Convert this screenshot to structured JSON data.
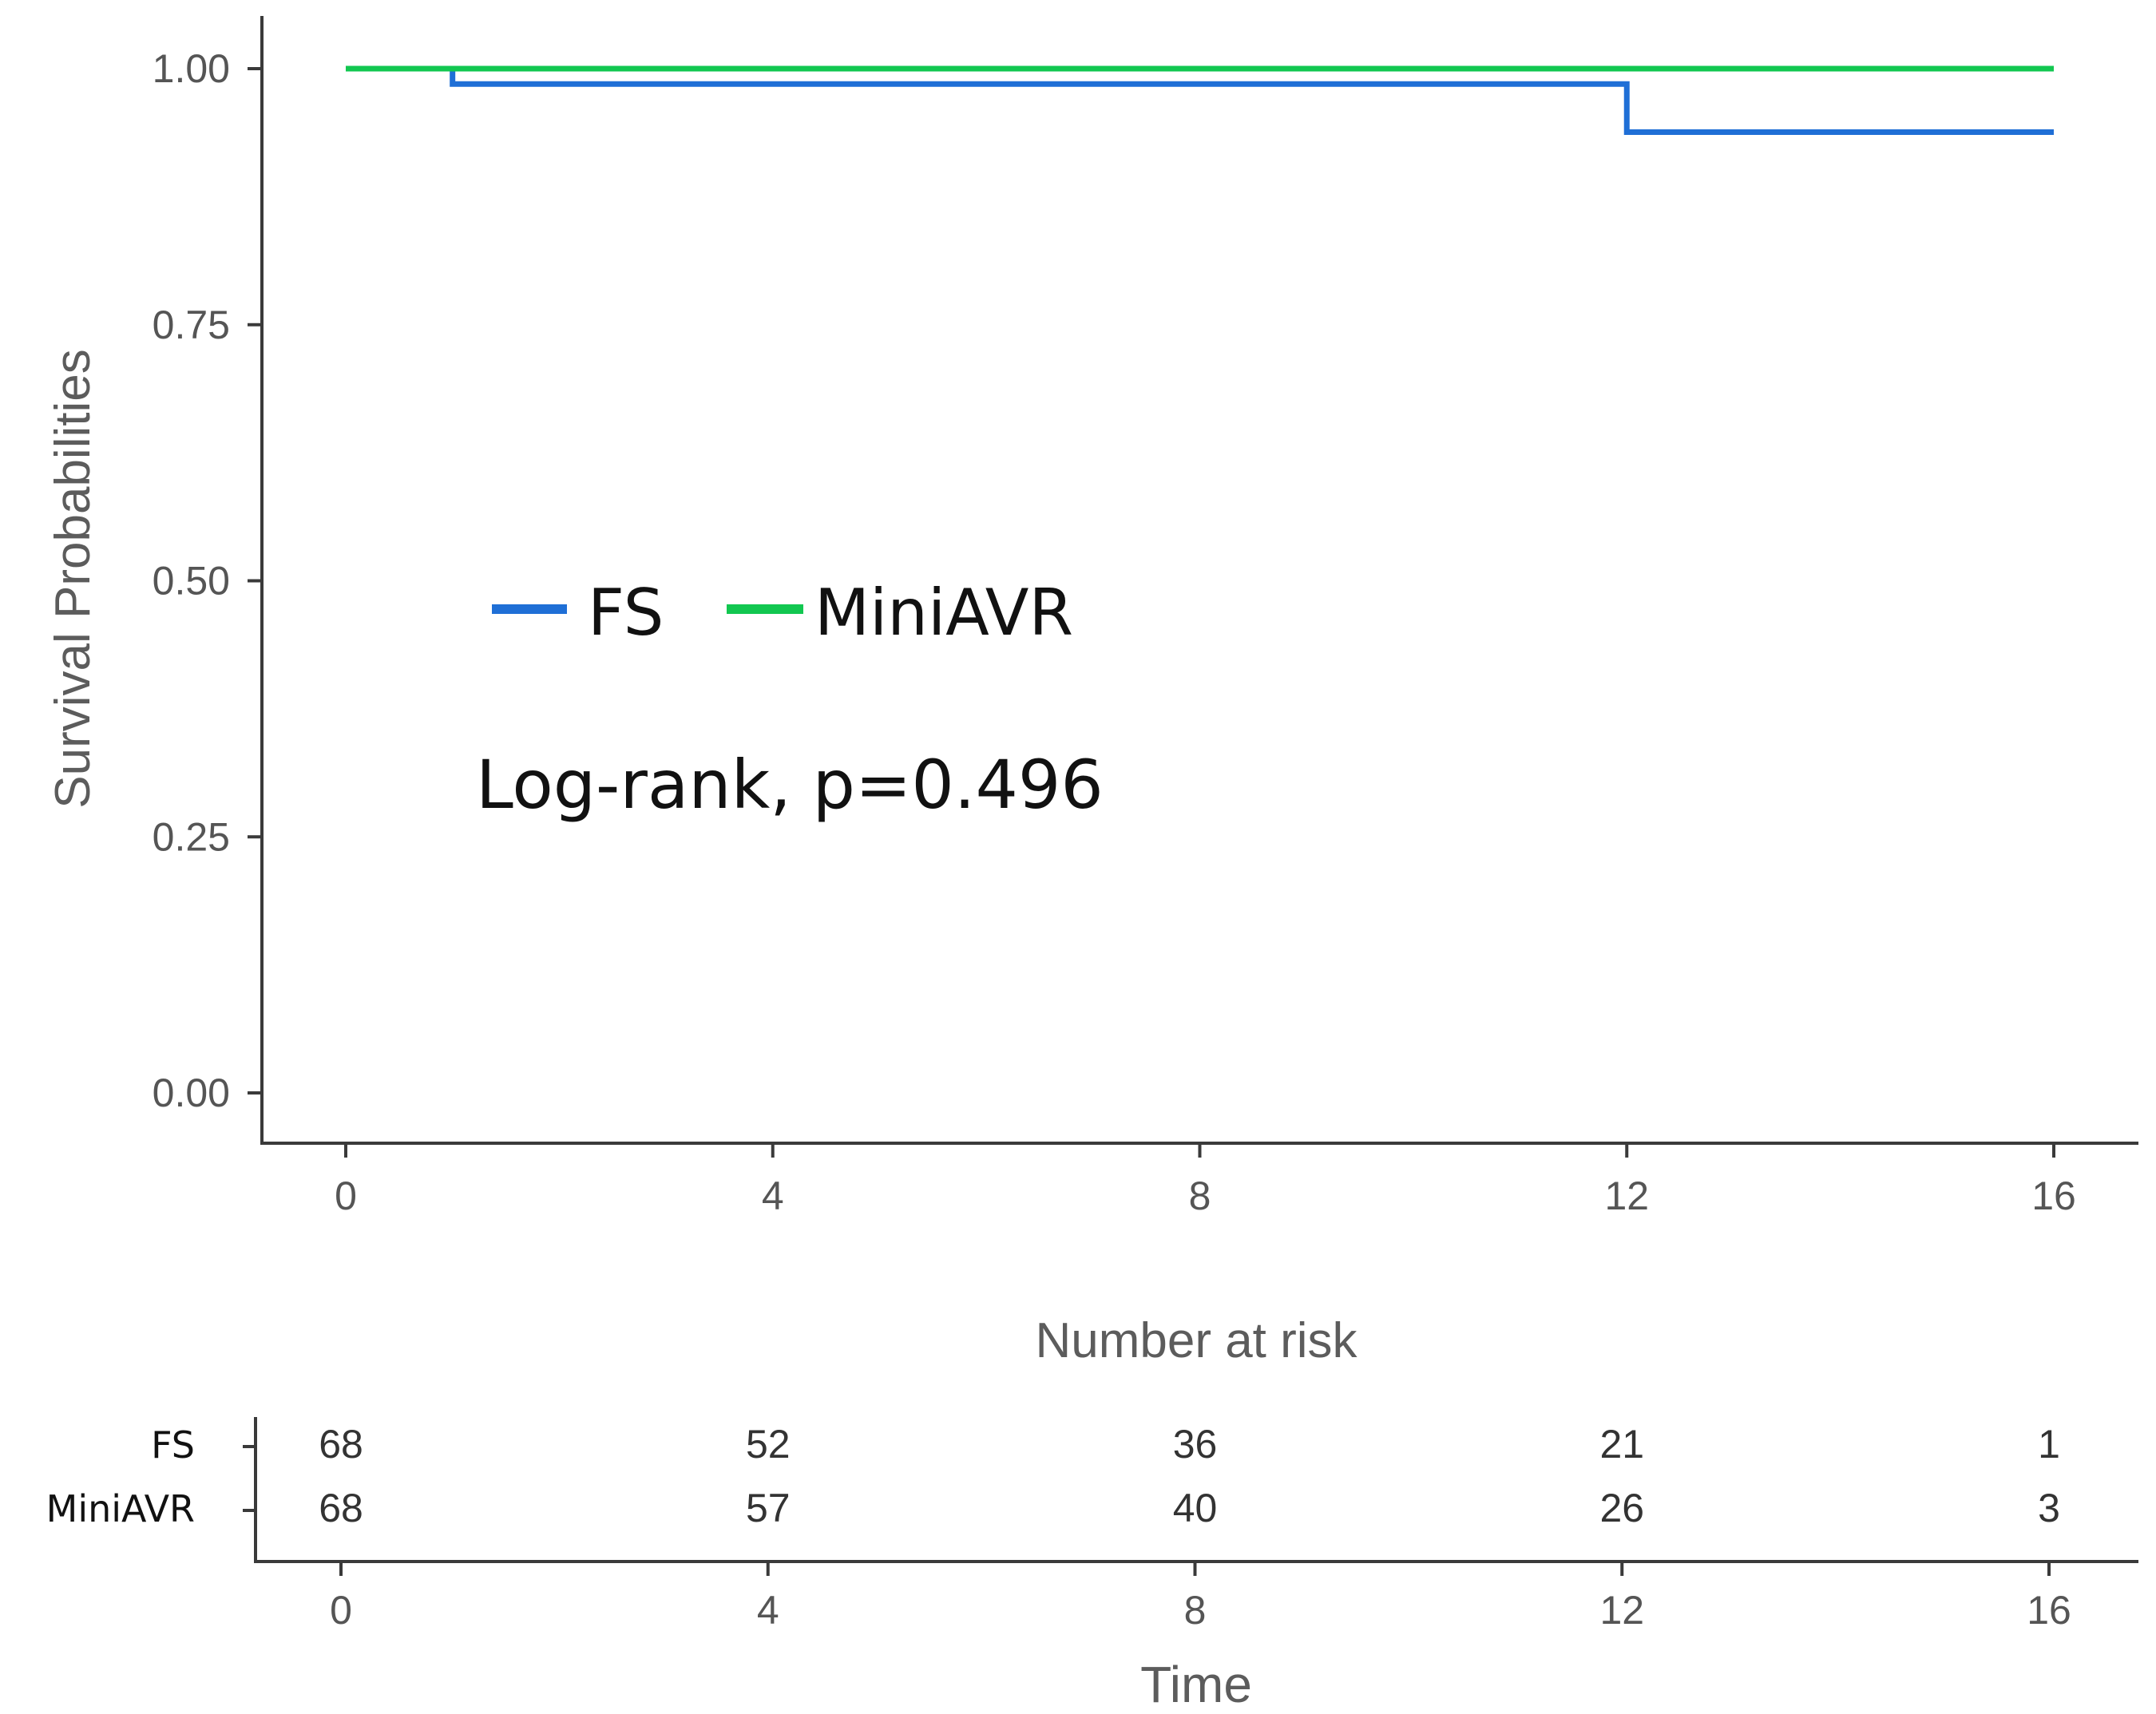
{
  "chart_data": {
    "type": "line",
    "subtype": "kaplan-meier",
    "ylabel": "Survival Probabilities",
    "xlabel": "Time",
    "xlim": [
      0,
      16
    ],
    "ylim": [
      0,
      1
    ],
    "x_ticks": [
      0,
      4,
      8,
      12,
      16
    ],
    "y_ticks": [
      "0.00",
      "0.25",
      "0.50",
      "0.75",
      "1.00"
    ],
    "grid": false,
    "legend_position": "center-left",
    "series": [
      {
        "name": "FS",
        "color": "#1f6fd6",
        "steps": [
          {
            "x": 0,
            "y": 1.0
          },
          {
            "x": 1,
            "y": 0.985
          },
          {
            "x": 12,
            "y": 0.938
          },
          {
            "x": 16,
            "y": 0.938
          }
        ]
      },
      {
        "name": "MiniAVR",
        "color": "#12c750",
        "steps": [
          {
            "x": 0,
            "y": 1.0
          },
          {
            "x": 16,
            "y": 1.0
          }
        ]
      }
    ],
    "annotation": "Log-rank, p=0.496",
    "risk_table": {
      "title": "Number at risk",
      "times": [
        0,
        4,
        8,
        12,
        16
      ],
      "rows": [
        {
          "label": "FS",
          "values": [
            "68",
            "52",
            "36",
            "21",
            "1"
          ]
        },
        {
          "label": "MiniAVR",
          "values": [
            "68",
            "57",
            "40",
            "26",
            "3"
          ]
        }
      ]
    }
  }
}
